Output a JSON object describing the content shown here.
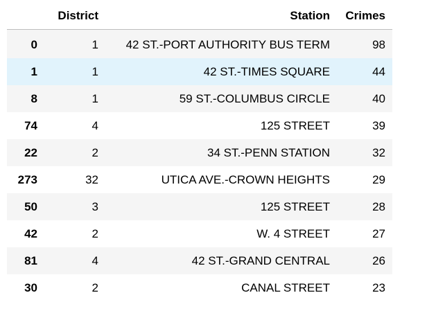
{
  "table": {
    "index_header": "",
    "columns": [
      "District",
      "Station",
      "Crimes"
    ],
    "rows": [
      {
        "index": "0",
        "district": "1",
        "station": "42 ST.-PORT AUTHORITY BUS TERM",
        "crimes": "98"
      },
      {
        "index": "1",
        "district": "1",
        "station": "42 ST.-TIMES SQUARE",
        "crimes": "44"
      },
      {
        "index": "8",
        "district": "1",
        "station": "59 ST.-COLUMBUS CIRCLE",
        "crimes": "40"
      },
      {
        "index": "74",
        "district": "4",
        "station": "125 STREET",
        "crimes": "39"
      },
      {
        "index": "22",
        "district": "2",
        "station": "34 ST.-PENN STATION",
        "crimes": "32"
      },
      {
        "index": "273",
        "district": "32",
        "station": "UTICA AVE.-CROWN HEIGHTS",
        "crimes": "29"
      },
      {
        "index": "50",
        "district": "3",
        "station": "125 STREET",
        "crimes": "28"
      },
      {
        "index": "42",
        "district": "2",
        "station": "W. 4 STREET",
        "crimes": "27"
      },
      {
        "index": "81",
        "district": "4",
        "station": "42 ST.-GRAND CENTRAL",
        "crimes": "26"
      },
      {
        "index": "30",
        "district": "2",
        "station": "CANAL STREET",
        "crimes": "23"
      }
    ],
    "hovered_row": 1
  },
  "colors": {
    "striped_row": "#f5f5f5",
    "hover_row": "#e1f3fc",
    "header_rule": "#bdbdbd"
  }
}
